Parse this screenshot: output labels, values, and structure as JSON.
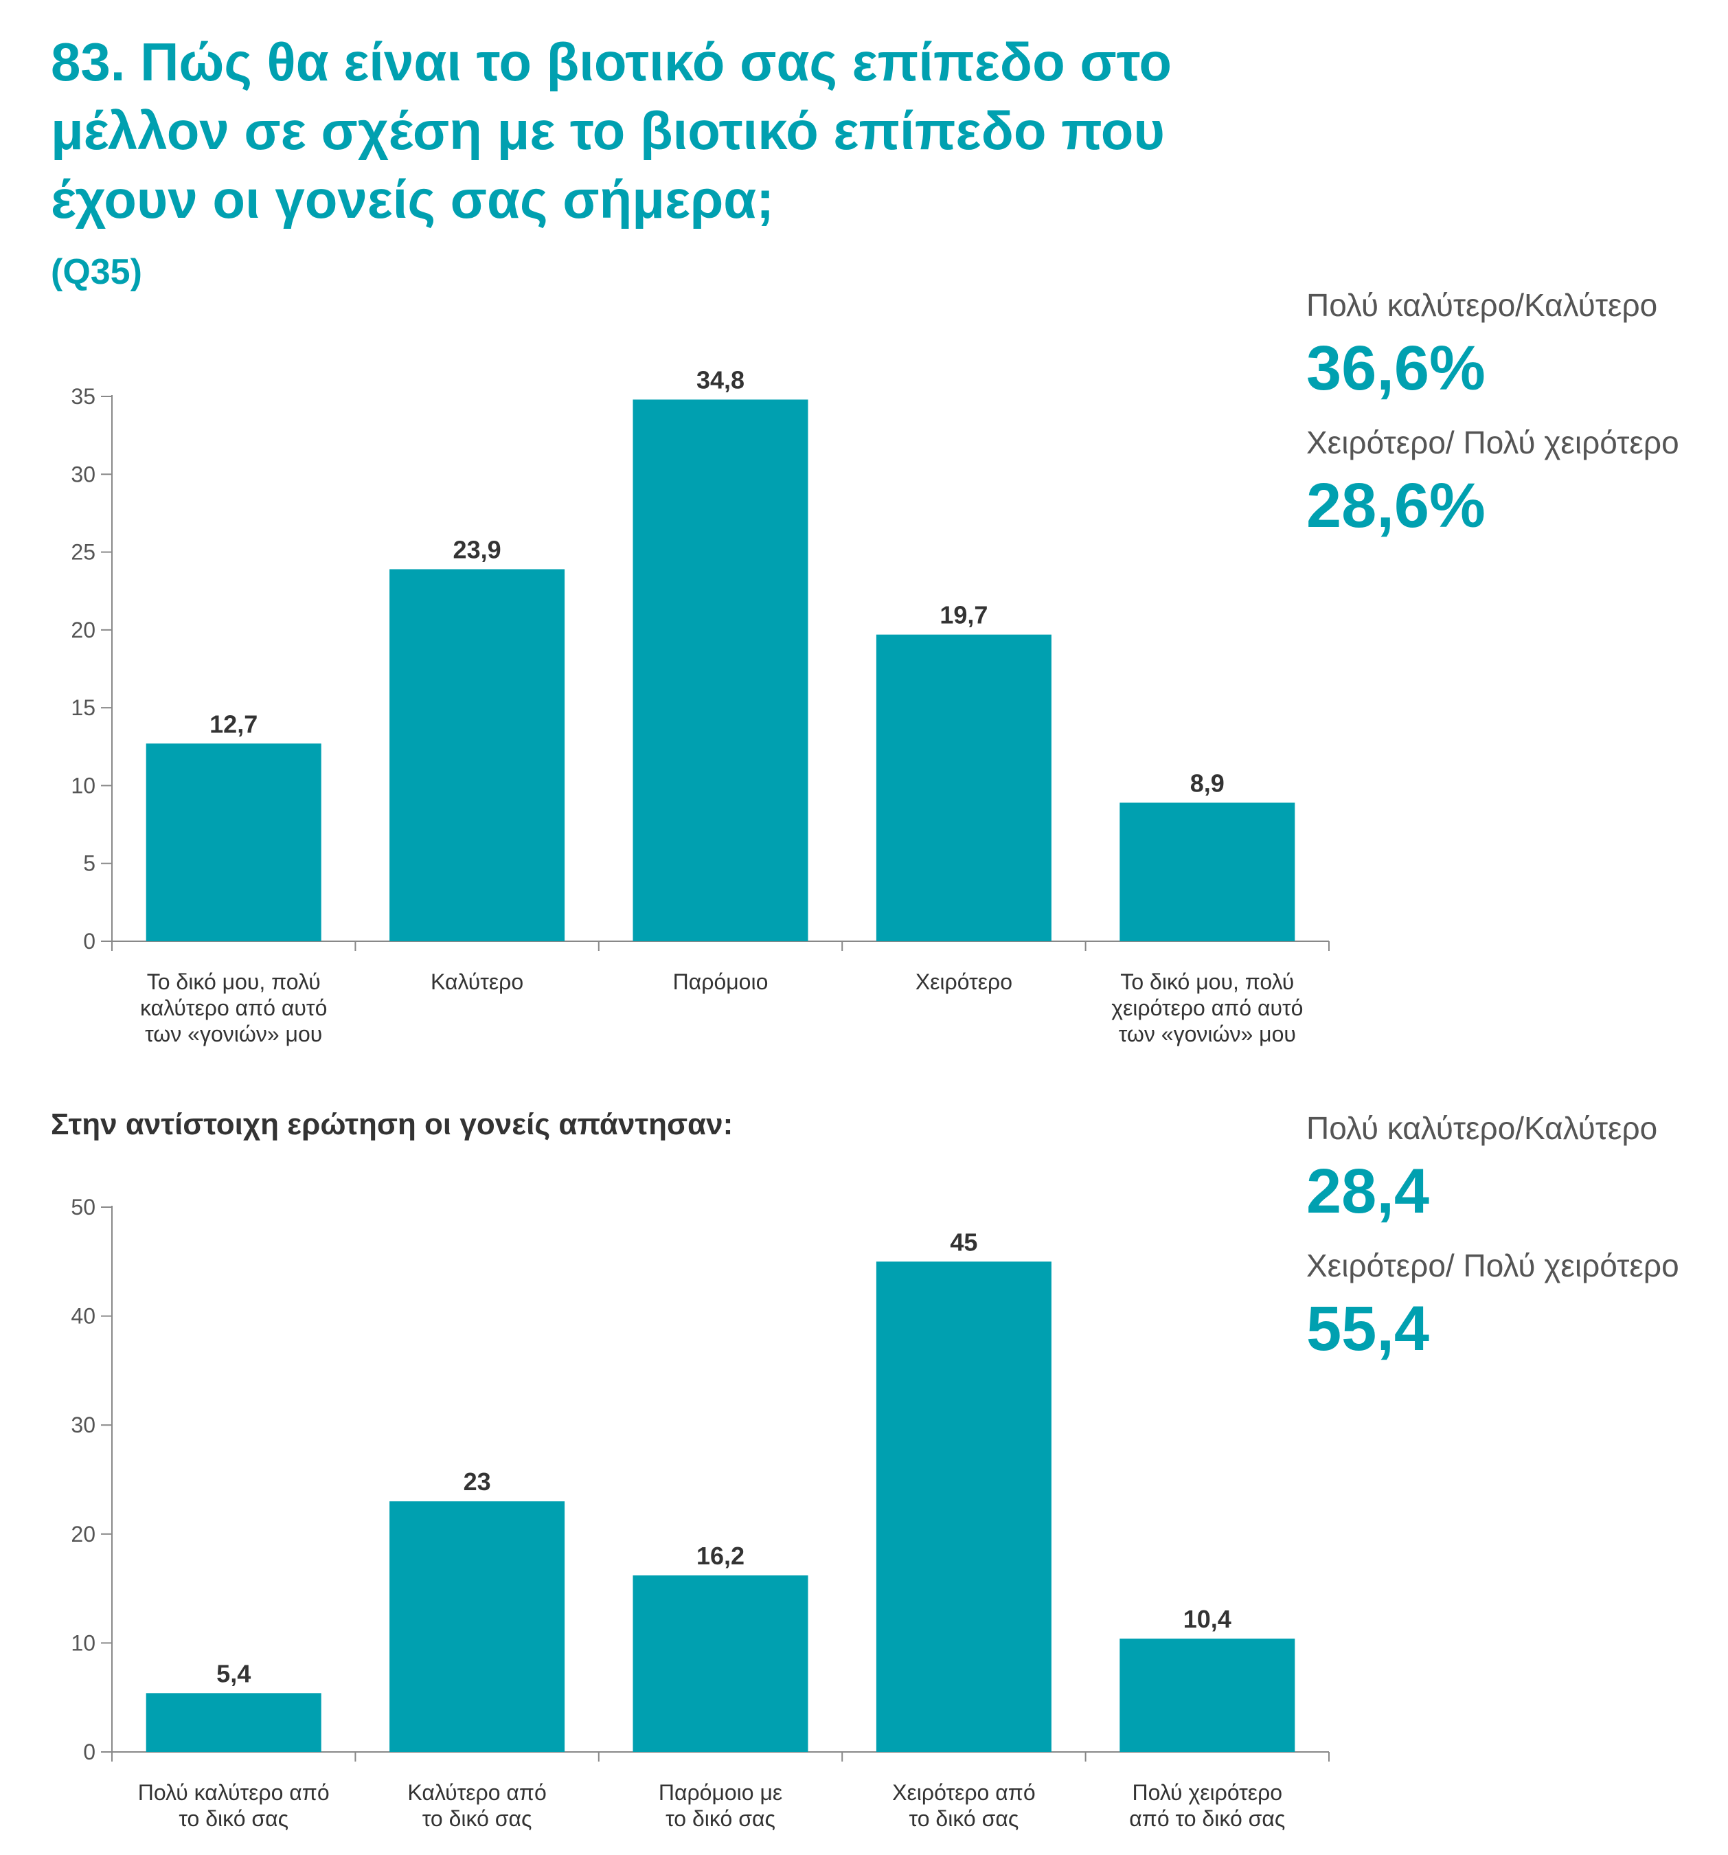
{
  "title": "83. Πώς θα είναι το βιοτικό σας επίπεδο στο μέλλον σε σχέση με το βιοτικό επίπεδο που έχουν οι γονείς σας σήμερα;",
  "question_code": "(Q35)",
  "section2_title": "Στην αντίστοιχη ερώτηση οι γονείς απάντησαν:",
  "colors": {
    "accent": "#00a0b0",
    "bar": "#00a0b0",
    "axis": "#888888",
    "text": "#333333"
  },
  "summary1": {
    "better_label": "Πολύ καλύτερο/Καλύτερο",
    "better_value": "36,6%",
    "worse_label": "Χειρότερο/ Πολύ χειρότερο",
    "worse_value": "28,6%"
  },
  "summary2": {
    "better_label": "Πολύ καλύτερο/Καλύτερο",
    "better_value": "28,4",
    "worse_label": "Χειρότερο/ Πολύ χειρότερο",
    "worse_value": "55,4"
  },
  "chart_data": [
    {
      "type": "bar",
      "categories": [
        [
          "Το δικό μου, πολύ",
          "καλύτερο από αυτό",
          "των «γονιών» μου"
        ],
        [
          "Καλύτερο"
        ],
        [
          "Παρόμοιο"
        ],
        [
          "Χειρότερο"
        ],
        [
          "Το δικό μου, πολύ",
          "χειρότερο από αυτό",
          "των «γονιών» μου"
        ]
      ],
      "values": [
        12.7,
        23.9,
        34.8,
        19.7,
        8.9
      ],
      "value_labels": [
        "12,7",
        "23,9",
        "34,8",
        "19,7",
        "8,9"
      ],
      "ylim": [
        0,
        35
      ],
      "yticks": [
        0,
        5,
        10,
        15,
        20,
        25,
        30,
        35
      ],
      "grid": false
    },
    {
      "type": "bar",
      "categories": [
        [
          "Πολύ καλύτερο από",
          "το δικό σας"
        ],
        [
          "Καλύτερο από",
          "το δικό σας"
        ],
        [
          "Παρόμοιο με",
          "το δικό σας"
        ],
        [
          "Χειρότερο από",
          "το δικό σας"
        ],
        [
          "Πολύ χειρότερο",
          "από το δικό σας"
        ]
      ],
      "values": [
        5.4,
        23,
        16.2,
        45,
        10.4
      ],
      "value_labels": [
        "5,4",
        "23",
        "16,2",
        "45",
        "10,4"
      ],
      "ylim": [
        0,
        50
      ],
      "yticks": [
        0,
        10,
        20,
        30,
        40,
        50
      ],
      "grid": false
    }
  ]
}
